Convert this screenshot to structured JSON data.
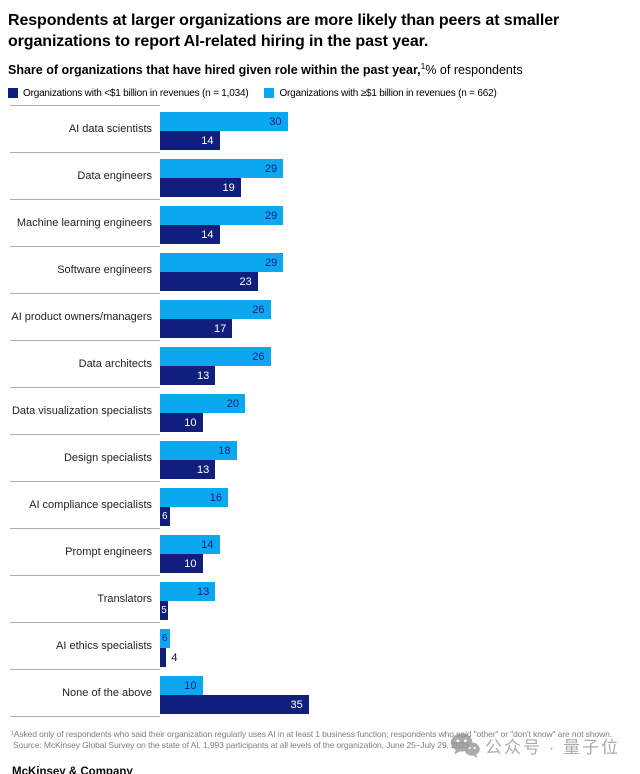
{
  "title": "Respondents at larger organizations are more likely than peers at smaller organizations to report AI-related hiring in the past year.",
  "subtitle": {
    "bold": "Share of organizations that have hired given role within the past year,",
    "superscript": "1",
    "regular": "% of respondents"
  },
  "legend": [
    {
      "id": "small-orgs",
      "label": "Organizations with <$1 billion in revenues (n = 1,034)",
      "color": "#101F7B"
    },
    {
      "id": "large-orgs",
      "label": "Organizations with ≥$1 billion in revenues (n = 662)",
      "color": "#0CA8EF"
    }
  ],
  "chart_data": {
    "type": "bar",
    "orientation": "horizontal",
    "title": "Share of organizations that have hired given role within the past year, % of respondents",
    "xlim": [
      0,
      35
    ],
    "grid": false,
    "legend_position": "top-left",
    "value_labels": "on-bar",
    "categories": [
      "AI data scientists",
      "Data engineers",
      "Machine learning engineers",
      "Software engineers",
      "AI product owners/managers",
      "Data architects",
      "Data visualization specialists",
      "Design specialists",
      "AI compliance specialists",
      "Prompt engineers",
      "Translators",
      "AI ethics specialists",
      "None of the above"
    ],
    "series": [
      {
        "name": "Organizations with ≥$1 billion in revenues (n = 662)",
        "color": "#0CA8EF",
        "position": "top",
        "values": [
          30,
          29,
          29,
          29,
          26,
          26,
          20,
          18,
          16,
          14,
          13,
          6,
          10
        ]
      },
      {
        "name": "Organizations with <$1 billion in revenues (n = 1,034)",
        "color": "#101F7B",
        "position": "bottom",
        "values": [
          14,
          19,
          14,
          23,
          17,
          13,
          10,
          13,
          6,
          10,
          5,
          4,
          35
        ]
      }
    ]
  },
  "footnotes": [
    "¹Asked only of respondents who said their organization regularly uses AI in at least 1 business function; respondents who said \"other\" or \"don't know\" are not shown.",
    "Source: McKinsey Global Survey on the state of AI, 1,993 participants at all levels of the organization, June 25–July 29, 2025"
  ],
  "watermark": {
    "icon": "wechat-icon",
    "text": "公众号 · 量子位"
  },
  "footer": "McKinsey & Company",
  "colors": {
    "navy": "#101F7B",
    "cyan": "#0CA8EF",
    "separator": "#ABABAB",
    "footnote_gray": "#7F7F7F",
    "watermark_gray": "#8F8F8F"
  }
}
